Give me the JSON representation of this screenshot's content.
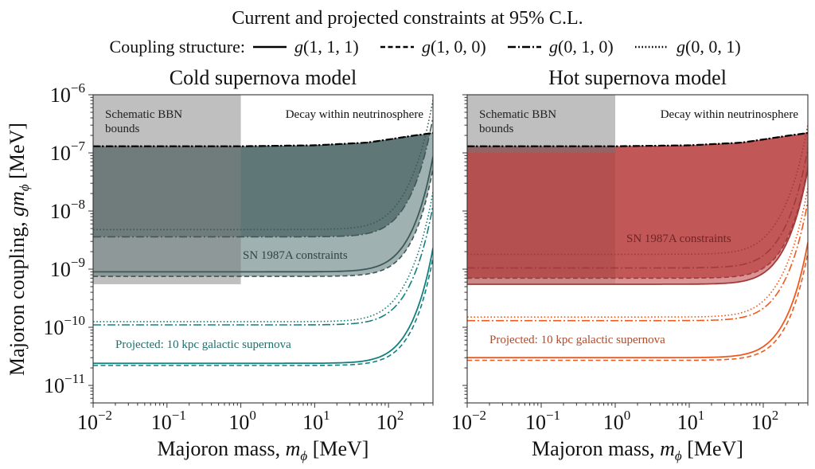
{
  "chart_data": [
    {
      "type": "line",
      "title": "Cold supernova model",
      "xlabel": "Majoron mass, m_φ [MeV]",
      "ylabel": "Majoron coupling, g m_φ [MeV]",
      "xscale": "log",
      "yscale": "log",
      "xlim": [
        0.01,
        400
      ],
      "ylim": [
        5e-12,
        1e-06
      ],
      "xticks": [
        0.01,
        0.1,
        1,
        10,
        100
      ],
      "xtick_labels": [
        [
          "10",
          "−2"
        ],
        [
          "10",
          "−1"
        ],
        [
          "10",
          "0"
        ],
        [
          "10",
          "1"
        ],
        [
          "10",
          "2"
        ]
      ],
      "yticks": [
        1e-06,
        1e-07,
        1e-08,
        1e-09,
        1e-10,
        1e-11
      ],
      "ytick_labels": [
        [
          "10",
          "−6"
        ],
        [
          "10",
          "−7"
        ],
        [
          "10",
          "−8"
        ],
        [
          "10",
          "−9"
        ],
        [
          "10",
          "−10"
        ],
        [
          "10",
          "−11"
        ]
      ],
      "show_ytick_labels": true,
      "bbn_region": {
        "label": "Schematic BBN bounds",
        "x": [
          0.01,
          1
        ],
        "y": [
          5.5e-10,
          1e-06
        ]
      },
      "decay_label": "Decay within neutrinosphere",
      "decay_boundary": {
        "x": [
          0.01,
          1,
          10,
          50,
          100,
          200,
          400
        ],
        "y": [
          1.3e-07,
          1.3e-07,
          1.35e-07,
          1.5e-07,
          1.7e-07,
          1.95e-07,
          2.2e-07
        ]
      },
      "band_color_dark": "#5f7877",
      "band_color_light": "#9fb1b0",
      "line_color_current": "#3d5857",
      "line_color_projected": "#13807e",
      "current_label": "SN 1987A constraints",
      "projected_label": "Projected: 10 kpc galactic supernova",
      "projected_label_color": "#1f6f6d",
      "series": [
        {
          "name": "g(1,1,1)",
          "group": "current",
          "style": "solid",
          "plateau": 9e-10,
          "rise_mass": 60
        },
        {
          "name": "g(1,0,0)",
          "group": "current",
          "style": "dashed",
          "plateau": 7.5e-10,
          "rise_mass": 70
        },
        {
          "name": "g(0,1,0)",
          "group": "current",
          "style": "dashdot",
          "plateau": 3.6e-09,
          "rise_mass": 55
        },
        {
          "name": "g(0,0,1)",
          "group": "current",
          "style": "dotted",
          "plateau": 4.8e-09,
          "rise_mass": 45
        },
        {
          "name": "g(1,1,1)",
          "group": "projected",
          "style": "solid",
          "plateau": 2.4e-11,
          "rise_mass": 60
        },
        {
          "name": "g(1,0,0)",
          "group": "projected",
          "style": "dashed",
          "plateau": 2.2e-11,
          "rise_mass": 70
        },
        {
          "name": "g(0,1,0)",
          "group": "projected",
          "style": "dashdot",
          "plateau": 1.1e-10,
          "rise_mass": 55
        },
        {
          "name": "g(0,0,1)",
          "group": "projected",
          "style": "dotted",
          "plateau": 1.25e-10,
          "rise_mass": 45
        }
      ]
    },
    {
      "type": "line",
      "title": "Hot supernova model",
      "xlabel": "Majoron mass, m_φ [MeV]",
      "ylabel": "",
      "xscale": "log",
      "yscale": "log",
      "xlim": [
        0.01,
        400
      ],
      "ylim": [
        5e-12,
        1e-06
      ],
      "xticks": [
        0.01,
        0.1,
        1,
        10,
        100
      ],
      "xtick_labels": [
        [
          "10",
          "−2"
        ],
        [
          "10",
          "−1"
        ],
        [
          "10",
          "0"
        ],
        [
          "10",
          "1"
        ],
        [
          "10",
          "2"
        ]
      ],
      "yticks": [
        1e-06,
        1e-07,
        1e-08,
        1e-09,
        1e-10,
        1e-11
      ],
      "ytick_labels": [],
      "show_ytick_labels": false,
      "bbn_region": {
        "label": "Schematic BBN bounds",
        "x": [
          0.01,
          1
        ],
        "y": [
          1e-07,
          1e-06
        ]
      },
      "decay_label": "Decay within neutrinosphere",
      "decay_boundary": {
        "x": [
          0.01,
          1,
          10,
          50,
          100,
          200,
          400
        ],
        "y": [
          1.3e-07,
          1.3e-07,
          1.35e-07,
          1.5e-07,
          1.7e-07,
          1.95e-07,
          2.2e-07
        ]
      },
      "band_color_dark": "#c25757",
      "band_color_light": "#d99595",
      "line_color_current": "#a33a3a",
      "line_color_projected": "#ee5a1e",
      "current_label": "SN 1987A constraints",
      "projected_label": "Projected: 10 kpc galactic supernova",
      "projected_label_color": "#b04a2a",
      "series": [
        {
          "name": "g(1,1,1)",
          "group": "current",
          "style": "solid",
          "plateau": 5.5e-10,
          "rise_mass": 60
        },
        {
          "name": "g(1,0,0)",
          "group": "current",
          "style": "dashed",
          "plateau": 7e-10,
          "rise_mass": 65
        },
        {
          "name": "g(0,1,0)",
          "group": "current",
          "style": "dashdot",
          "plateau": 1.05e-09,
          "rise_mass": 55
        },
        {
          "name": "g(0,0,1)",
          "group": "current",
          "style": "dotted",
          "plateau": 1.8e-09,
          "rise_mass": 45
        },
        {
          "name": "g(1,1,1)",
          "group": "projected",
          "style": "solid",
          "plateau": 3e-11,
          "rise_mass": 60
        },
        {
          "name": "g(1,0,0)",
          "group": "projected",
          "style": "dashed",
          "plateau": 2.7e-11,
          "rise_mass": 70
        },
        {
          "name": "g(0,1,0)",
          "group": "projected",
          "style": "dashdot",
          "plateau": 1.3e-10,
          "rise_mass": 55
        },
        {
          "name": "g(0,0,1)",
          "group": "projected",
          "style": "dotted",
          "plateau": 1.5e-10,
          "rise_mass": 45
        }
      ]
    }
  ],
  "figure": {
    "suptitle": "Current and projected constraints at 95% C.L.",
    "legend_title": "Coupling structure:",
    "legend": [
      {
        "label": "g(1, 1, 1)",
        "style": "solid"
      },
      {
        "label": "g(1, 0, 0)",
        "style": "dashed"
      },
      {
        "label": "g(0, 1, 0)",
        "style": "dashdot"
      },
      {
        "label": "g(0, 0, 1)",
        "style": "dotted"
      }
    ],
    "legend_placement": "top-center"
  }
}
